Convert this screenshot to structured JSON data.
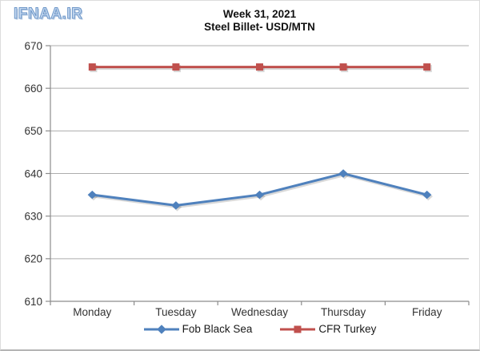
{
  "logo": {
    "text": "IFNAA.IR",
    "fill_color": "#C5D9F1",
    "outline_color": "#6E97C8"
  },
  "chart_data": {
    "type": "line",
    "title": "Week 31, 2021",
    "subtitle": "Steel Billet- USD/MTN",
    "xlabel": "",
    "ylabel": "",
    "categories": [
      "Monday",
      "Tuesday",
      "Wednesday",
      "Thursday",
      "Friday"
    ],
    "series": [
      {
        "name": "Fob Black Sea",
        "values": [
          635,
          632.5,
          635,
          640,
          635
        ],
        "color": "#4F81BD",
        "marker": "diamond"
      },
      {
        "name": "CFR Turkey",
        "values": [
          665,
          665,
          665,
          665,
          665
        ],
        "color": "#C0504D",
        "marker": "square"
      }
    ],
    "ylim": [
      610,
      670
    ],
    "yticks": [
      670,
      660,
      650,
      640,
      630,
      620,
      610
    ],
    "grid": true,
    "legend_position": "bottom",
    "colors": {
      "gridline": "#ADADAD",
      "axis": "#8C8C8C",
      "tick_label": "#333333"
    }
  }
}
